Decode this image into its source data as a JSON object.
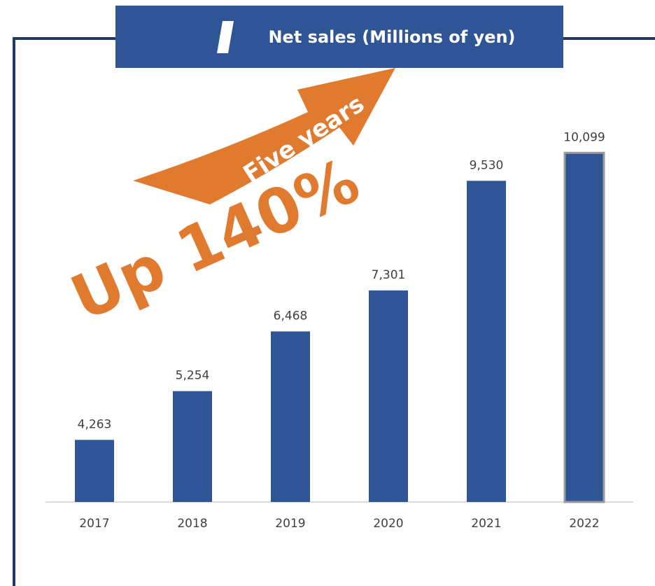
{
  "chart_data": {
    "type": "bar",
    "title": "Net sales (Millions of yen)",
    "categories": [
      "2017",
      "2018",
      "2019",
      "2020",
      "2021",
      "2022"
    ],
    "values": [
      4263,
      5254,
      6468,
      7301,
      9530,
      10099
    ],
    "value_labels": [
      "4,263",
      "5,254",
      "6,468",
      "7,301",
      "9,530",
      "10,099"
    ],
    "color": "#2f5597",
    "ylim": [
      3000,
      11000
    ],
    "annotations": [
      "Five years",
      "Up 140%"
    ]
  }
}
